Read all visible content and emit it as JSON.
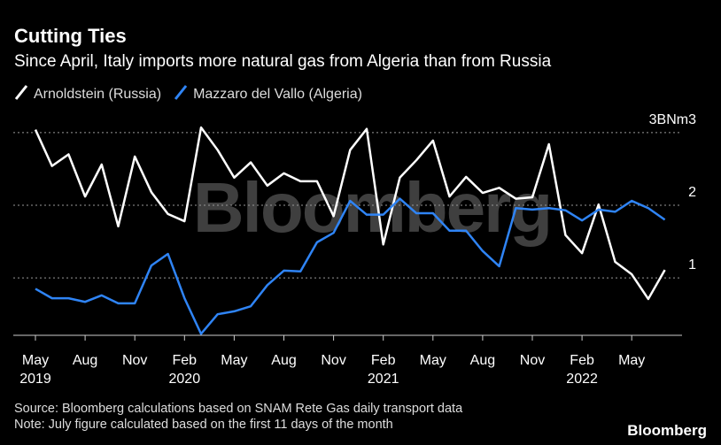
{
  "chart_data": {
    "type": "line",
    "title": "Cutting Ties",
    "subtitle": "Since April, Italy imports more natural gas from Algeria than from Russia",
    "watermark": "Bloomberg",
    "categories": [
      "May",
      null,
      null,
      "Aug",
      null,
      null,
      "Nov",
      null,
      null,
      "Feb",
      null,
      null,
      "May",
      null,
      null,
      "Aug",
      null,
      null,
      "Nov",
      null,
      null,
      "Feb",
      null,
      null,
      "May",
      null,
      null,
      "Aug",
      null,
      null,
      "Nov",
      null,
      null,
      "Feb",
      null,
      null,
      "May",
      null,
      null
    ],
    "years": [
      "2019",
      null,
      null,
      null,
      null,
      null,
      null,
      null,
      null,
      "2020",
      null,
      null,
      null,
      null,
      null,
      null,
      null,
      null,
      null,
      null,
      null,
      "2021",
      null,
      null,
      null,
      null,
      null,
      null,
      null,
      null,
      null,
      null,
      null,
      "2022",
      null,
      null,
      null,
      null,
      null
    ],
    "series": [
      {
        "name": "Arnoldstein (Russia)",
        "color": "#ffffff",
        "values": [
          3.04,
          2.54,
          2.7,
          2.12,
          2.56,
          1.71,
          2.67,
          2.18,
          1.88,
          1.78,
          3.07,
          2.76,
          2.38,
          2.59,
          2.27,
          2.44,
          2.33,
          2.33,
          1.85,
          2.76,
          3.05,
          1.46,
          2.38,
          2.62,
          2.89,
          2.12,
          2.39,
          2.17,
          2.24,
          2.09,
          2.11,
          2.84,
          1.59,
          1.34,
          2.01,
          1.22,
          1.05,
          0.71,
          1.11
        ]
      },
      {
        "name": "Mazzaro del Vallo (Algeria)",
        "color": "#2f84f5",
        "values": [
          0.85,
          0.72,
          0.72,
          0.67,
          0.76,
          0.65,
          0.65,
          1.17,
          1.33,
          0.72,
          0.23,
          0.5,
          0.54,
          0.61,
          0.9,
          1.1,
          1.09,
          1.49,
          1.62,
          2.06,
          1.87,
          1.87,
          2.09,
          1.89,
          1.89,
          1.65,
          1.65,
          1.37,
          1.16,
          1.96,
          1.94,
          1.96,
          1.93,
          1.79,
          1.94,
          1.91,
          2.06,
          1.96,
          1.8
        ]
      }
    ],
    "ylim": [
      0.21,
      3.12
    ],
    "yticks": [
      1,
      2,
      {
        "value": 3,
        "label": "3BNm3"
      }
    ],
    "grid": true,
    "source": "Source: Bloomberg calculations based on SNAM Rete Gas daily transport data",
    "note": "Note: July figure calculated based on the first 11 days of the month",
    "logo": "Bloomberg"
  }
}
